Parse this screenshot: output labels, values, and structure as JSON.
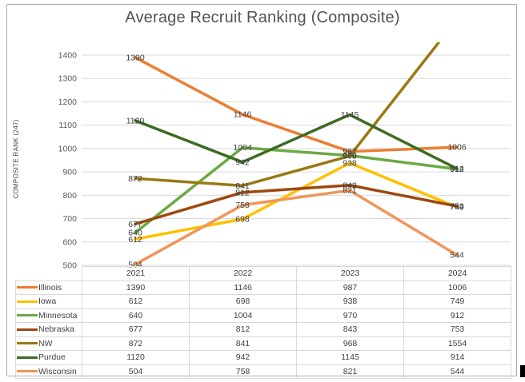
{
  "title": "Average Recruit Ranking (Composite)",
  "y_axis_title": "COMPOSITE RANK (247)",
  "chart_data": {
    "type": "line",
    "categories": [
      "2021",
      "2022",
      "2023",
      "2024"
    ],
    "series": [
      {
        "name": "Illinois",
        "color": "#ED7D31",
        "values": [
          1390,
          1146,
          987,
          1006
        ]
      },
      {
        "name": "Iowa",
        "color": "#FFC000",
        "values": [
          612,
          698,
          938,
          749
        ]
      },
      {
        "name": "Minnesota",
        "color": "#6AAA43",
        "values": [
          640,
          1004,
          970,
          912
        ]
      },
      {
        "name": "Nebraska",
        "color": "#9E480E",
        "values": [
          677,
          812,
          843,
          753
        ]
      },
      {
        "name": "NW",
        "color": "#9A7915",
        "values": [
          872,
          841,
          968,
          1554
        ]
      },
      {
        "name": "Purdue",
        "color": "#3D6B22",
        "values": [
          1120,
          942,
          1145,
          914
        ]
      },
      {
        "name": "Wisconsin",
        "color": "#F0965A",
        "values": [
          504,
          758,
          821,
          544
        ]
      }
    ],
    "title": "Average Recruit Ranking (Composite)",
    "xlabel": "",
    "ylabel": "COMPOSITE RANK (247)",
    "ylim": [
      500,
      1400
    ],
    "ytick_step": 100,
    "grid": true,
    "data_labels": "center",
    "legend_position": "data-table-left",
    "gridline_color": "#d9d9d9"
  }
}
